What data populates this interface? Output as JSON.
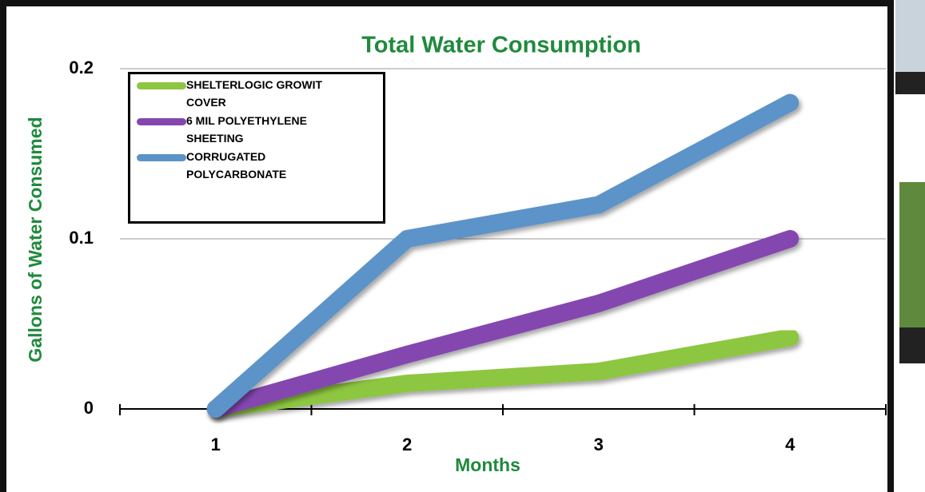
{
  "chart_data": {
    "type": "line",
    "title": "Total Water Consumption",
    "x_label": "Months",
    "y_label": "Gallons of Water Consumed",
    "categories": [
      "1",
      "2",
      "3",
      "4"
    ],
    "series": [
      {
        "name": "SHELTERLOGIC GROWIT COVER",
        "color": "#8dc641",
        "values": [
          0,
          0.015,
          0.022,
          0.042
        ]
      },
      {
        "name": "6 MIL POLYETHYLENE SHEETING",
        "color": "#8446b0",
        "values": [
          0,
          0.032,
          0.062,
          0.1
        ]
      },
      {
        "name": "CORRUGATED POLYCARBONATE",
        "color": "#5b93c9",
        "values": [
          0,
          0.1,
          0.12,
          0.18
        ]
      }
    ],
    "ylim": [
      0,
      0.2
    ],
    "yticks": [
      0,
      0.1,
      0.2
    ],
    "grid": true,
    "legend": "top-left"
  }
}
